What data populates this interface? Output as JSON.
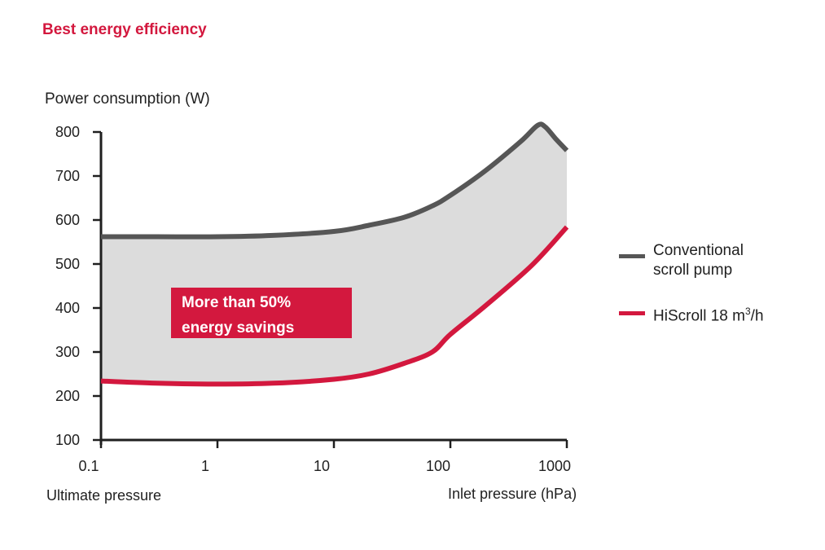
{
  "chart_data": {
    "type": "area",
    "title": "Best energy efficiency",
    "ylabel": "Power consumption (W)",
    "xlabel_left": "Ultimate pressure",
    "xlabel_right": "Inlet pressure (hPa)",
    "x_scale": "log",
    "xlim": [
      0.1,
      1000
    ],
    "ylim": [
      100,
      800
    ],
    "x_ticks": [
      "0.1",
      "1",
      "10",
      "100",
      "1000"
    ],
    "x_tick_values": [
      0.1,
      1,
      10,
      100,
      1000
    ],
    "y_ticks": [
      "100",
      "200",
      "300",
      "400",
      "500",
      "600",
      "700",
      "800"
    ],
    "y_tick_values": [
      100,
      200,
      300,
      400,
      500,
      600,
      700,
      800
    ],
    "grid": false,
    "legend_position": "right",
    "series": [
      {
        "name": "Conventional scroll pump",
        "legend_lines": [
          "Conventional",
          "scroll pump"
        ],
        "color": "#565656",
        "x": [
          0.1,
          0.3,
          1,
          3,
          10,
          20,
          40,
          70,
          100,
          200,
          400,
          560,
          650,
          800,
          1000
        ],
        "y": [
          562,
          562,
          562,
          565,
          574,
          588,
          606,
          632,
          656,
          712,
          778,
          815,
          812,
          785,
          758
        ]
      },
      {
        "name": "HiScroll 18 m3/h",
        "legend_html_parts": [
          "HiScroll 18 m",
          "3",
          "/h"
        ],
        "color": "#d3183e",
        "x": [
          0.1,
          0.3,
          1,
          3,
          10,
          20,
          40,
          70,
          100,
          200,
          500,
          1000
        ],
        "y": [
          234,
          229,
          227,
          229,
          238,
          250,
          274,
          300,
          340,
          405,
          497,
          584
        ]
      }
    ],
    "annotation": {
      "lines": [
        "More than 50%",
        "energy savings"
      ],
      "color": "#d3183e"
    },
    "fill_between_color": "#dcdcdc"
  }
}
